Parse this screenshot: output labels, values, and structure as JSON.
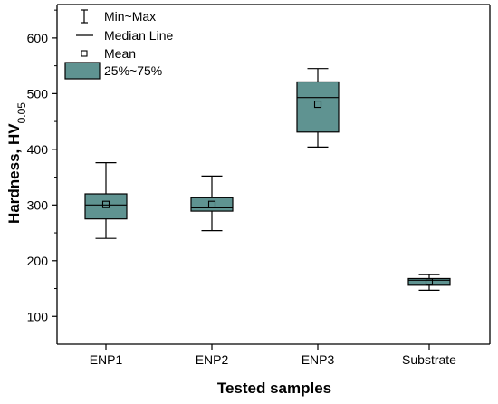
{
  "chart_data": {
    "type": "box",
    "xlabel": "Tested samples",
    "ylabel_main": "Hardness, HV",
    "ylabel_sub": "0.05",
    "ylim": [
      50,
      660
    ],
    "yticks": [
      100,
      200,
      300,
      400,
      500,
      600
    ],
    "grid": false,
    "legend_placement": "top-left",
    "legend": {
      "minmax": "Min~Max",
      "median": "Median Line",
      "mean": "Mean",
      "box": "25%~75%"
    },
    "box_color": "#5f9391",
    "categories": [
      "ENP1",
      "ENP2",
      "ENP3",
      "Substrate"
    ],
    "boxes": [
      {
        "name": "ENP1",
        "min": 240,
        "q1": 275,
        "median": 300,
        "q3": 320,
        "max": 376,
        "mean": 301
      },
      {
        "name": "ENP2",
        "min": 254,
        "q1": 289,
        "median": 295,
        "q3": 313,
        "max": 352,
        "mean": 301
      },
      {
        "name": "ENP3",
        "min": 404,
        "q1": 431,
        "median": 493,
        "q3": 521,
        "max": 545,
        "mean": 481
      },
      {
        "name": "Substrate",
        "min": 147,
        "q1": 156,
        "median": 165,
        "q3": 168,
        "max": 175,
        "mean": 162
      }
    ]
  }
}
